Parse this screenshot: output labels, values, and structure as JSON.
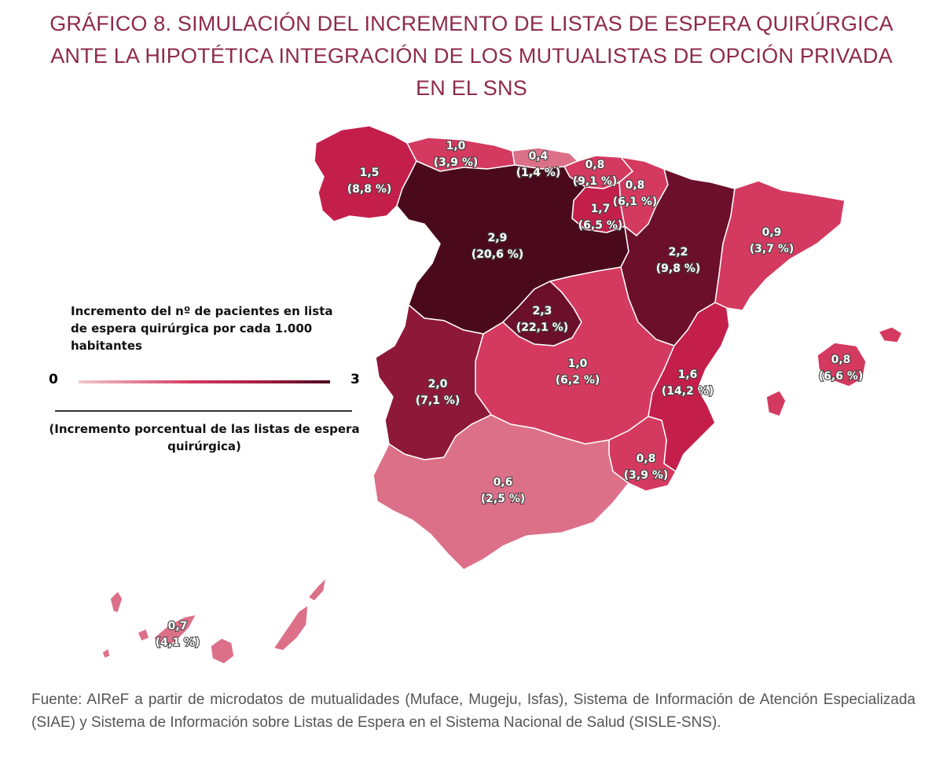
{
  "title": {
    "line1": "GRÁFICO 8.  SIMULACIÓN DEL INCREMENTO DE LISTAS DE ESPERA QUIRÚRGICA",
    "line2": "ANTE LA HIPOTÉTICA INTEGRACIÓN DE LOS MUTUALISTAS DE OPCIÓN PRIVADA",
    "line3": "EN EL SNS"
  },
  "legend": {
    "title": "Incremento del nº de pacientes en lista de espera quirúrgica por cada 1.000 habitantes",
    "min": "0",
    "max": "3",
    "subtitle": "(Incremento porcentual de las listas de espera quirúrgica)",
    "scale_min_value": 0,
    "scale_max_value": 3
  },
  "colors": {
    "very_dark": "#4a0a1c",
    "dark": "#6b0f2a",
    "medium_dark": "#8e1838",
    "medium": "#c41f4b",
    "light": "#d43a5f",
    "very_light": "#dc7088"
  },
  "regions": [
    {
      "id": "galicia",
      "value": 1.5,
      "value_label": "1,5",
      "pct_label": "(8,8 %)"
    },
    {
      "id": "asturias",
      "value": 1.0,
      "value_label": "1,0",
      "pct_label": "(3,9 %)"
    },
    {
      "id": "cantabria",
      "value": 0.4,
      "value_label": "0,4",
      "pct_label": "(1,4 %)"
    },
    {
      "id": "pais-vasco",
      "value": 0.8,
      "value_label": "0,8",
      "pct_label": "(9,1 %)"
    },
    {
      "id": "navarra",
      "value": 0.8,
      "value_label": "0,8",
      "pct_label": "(6,1 %)"
    },
    {
      "id": "la-rioja",
      "value": 1.7,
      "value_label": "1,7",
      "pct_label": "(6,5 %)"
    },
    {
      "id": "castilla-y-leon",
      "value": 2.9,
      "value_label": "2,9",
      "pct_label": "(20,6 %)"
    },
    {
      "id": "aragon",
      "value": 2.2,
      "value_label": "2,2",
      "pct_label": "(9,8 %)"
    },
    {
      "id": "cataluna",
      "value": 0.9,
      "value_label": "0,9",
      "pct_label": "(3,7 %)"
    },
    {
      "id": "madrid",
      "value": 2.3,
      "value_label": "2,3",
      "pct_label": "(22,1 %)"
    },
    {
      "id": "extremadura",
      "value": 2.0,
      "value_label": "2,0",
      "pct_label": "(7,1 %)"
    },
    {
      "id": "castilla-la-mancha",
      "value": 1.0,
      "value_label": "1,0",
      "pct_label": "(6,2 %)"
    },
    {
      "id": "comunidad-valenciana",
      "value": 1.6,
      "value_label": "1,6",
      "pct_label": "(14,2 %)"
    },
    {
      "id": "baleares",
      "value": 0.8,
      "value_label": "0,8",
      "pct_label": "(6,6 %)"
    },
    {
      "id": "murcia",
      "value": 0.8,
      "value_label": "0,8",
      "pct_label": "(3,9 %)"
    },
    {
      "id": "andalucia",
      "value": 0.6,
      "value_label": "0,6",
      "pct_label": "(2,5 %)"
    },
    {
      "id": "canarias",
      "value": 0.7,
      "value_label": "0,7",
      "pct_label": "(4,1 %)"
    }
  ],
  "source": "Fuente: AIReF a partir de microdatos de mutualidades (Muface, Mugeju, Isfas), Sistema de Información de Atención Especializada (SIAE) y Sistema de Información sobre Listas de Espera en el Sistema Nacional de Salud (SISLE-SNS)."
}
